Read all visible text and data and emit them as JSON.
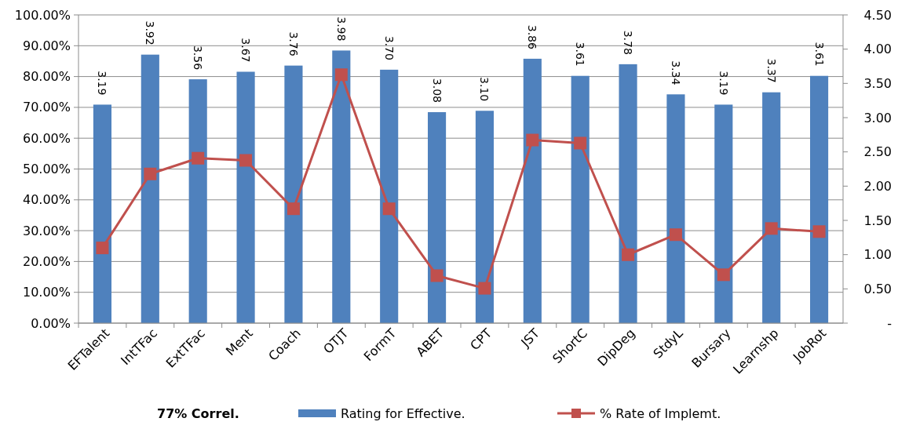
{
  "chart_data": {
    "type": "bar",
    "categories": [
      "EFTalent",
      "IntTFac",
      "ExtTFac",
      "Ment",
      "Coach",
      "OTJT",
      "FormT",
      "ABET",
      "CPT",
      "JST",
      "ShortC",
      "DipDeg",
      "StdyL",
      "Bursary",
      "Learnshp",
      "JobRot"
    ],
    "series": [
      {
        "name": "Rating for Effective.",
        "axis": "y2",
        "color": "#4f81bd",
        "values": [
          3.19,
          3.92,
          3.56,
          3.67,
          3.76,
          3.98,
          3.7,
          3.08,
          3.1,
          3.86,
          3.61,
          3.78,
          3.34,
          3.19,
          3.37,
          3.61
        ],
        "value_labels": [
          "3.19",
          "3.92",
          "3.56",
          "3.67",
          "3.76",
          "3.98",
          "3.70",
          "3.08",
          "3.10",
          "3.86",
          "3.61",
          "3.78",
          "3.34",
          "3.19",
          "3.37",
          "3.61"
        ]
      },
      {
        "name": "% Rate of Implemt.",
        "type": "line",
        "axis": "y",
        "color": "#c0504d",
        "marker": "square",
        "values": [
          24.4,
          48.4,
          53.5,
          52.8,
          37.1,
          80.6,
          37.1,
          15.4,
          11.3,
          59.4,
          58.4,
          22.2,
          28.7,
          15.7,
          30.7,
          29.7
        ]
      }
    ],
    "ylim": [
      0,
      100
    ],
    "yticks": [
      {
        "value": 0,
        "label": "0.00%"
      },
      {
        "value": 10,
        "label": "10.00%"
      },
      {
        "value": 20,
        "label": "20.00%"
      },
      {
        "value": 30,
        "label": "30.00%"
      },
      {
        "value": 40,
        "label": "40.00%"
      },
      {
        "value": 50,
        "label": "50.00%"
      },
      {
        "value": 60,
        "label": "60.00%"
      },
      {
        "value": 70,
        "label": "70.00%"
      },
      {
        "value": 80,
        "label": "80.00%"
      },
      {
        "value": 90,
        "label": "90.00%"
      },
      {
        "value": 100,
        "label": "100.00%"
      }
    ],
    "y2lim": [
      0,
      4.5
    ],
    "y2ticks": [
      {
        "value": 0,
        "label": "-"
      },
      {
        "value": 0.5,
        "label": "0.50"
      },
      {
        "value": 1,
        "label": "1.00"
      },
      {
        "value": 1.5,
        "label": "1.50"
      },
      {
        "value": 2,
        "label": "2.00"
      },
      {
        "value": 2.5,
        "label": "2.50"
      },
      {
        "value": 3,
        "label": "3.00"
      },
      {
        "value": 3.5,
        "label": "3.50"
      },
      {
        "value": 4,
        "label": "4.00"
      },
      {
        "value": 4.5,
        "label": "4.50"
      }
    ],
    "grid": "y",
    "legend": "bottom",
    "annotations": [
      "77% Correl."
    ]
  }
}
